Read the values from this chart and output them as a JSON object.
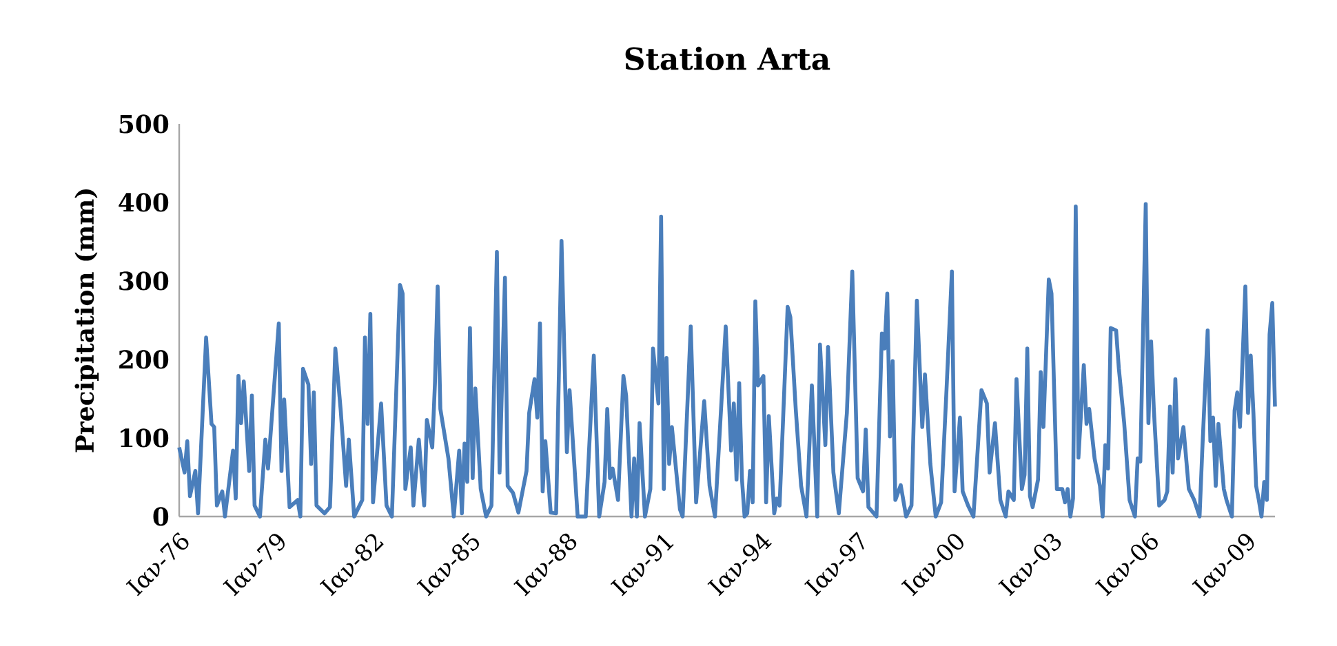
{
  "chart_data": {
    "type": "line",
    "title": "Station Arta",
    "ylabel": "Precipitation (mm)",
    "ylim": [
      0,
      500
    ],
    "yticks": [
      0,
      100,
      200,
      300,
      400,
      500
    ],
    "xlim": [
      "1976-01",
      "2009-12"
    ],
    "xticks": [
      {
        "value": "1976-01",
        "label": "Ιαν-76"
      },
      {
        "value": "1979-01",
        "label": "Ιαν-79"
      },
      {
        "value": "1982-01",
        "label": "Ιαν-82"
      },
      {
        "value": "1985-01",
        "label": "Ιαν-85"
      },
      {
        "value": "1988-01",
        "label": "Ιαν-88"
      },
      {
        "value": "1991-01",
        "label": "Ιαν-91"
      },
      {
        "value": "1994-01",
        "label": "Ιαν-94"
      },
      {
        "value": "1997-01",
        "label": "Ιαν-97"
      },
      {
        "value": "2000-01",
        "label": "Ιαν-00"
      },
      {
        "value": "2003-01",
        "label": "Ιαν-03"
      },
      {
        "value": "2006-01",
        "label": "Ιαν-06"
      },
      {
        "value": "2009-01",
        "label": "Ιαν-09"
      }
    ],
    "marker": "none",
    "line_style": "solid",
    "series": [
      {
        "color": "#4a7ebb",
        "x": [
          "1976-01",
          "1976-03",
          "1976-04",
          "1976-05",
          "1976-07",
          "1976-08",
          "1976-11",
          "1977-01",
          "1977-02",
          "1977-03",
          "1977-05",
          "1977-06",
          "1977-09",
          "1977-10",
          "1977-11",
          "1977-12",
          "1978-01",
          "1978-03",
          "1978-04",
          "1978-05",
          "1978-07",
          "1978-09",
          "1978-10",
          "1979-02",
          "1979-03",
          "1979-04",
          "1979-06",
          "1979-09",
          "1979-10",
          "1979-11",
          "1980-01",
          "1980-02",
          "1980-03",
          "1980-04",
          "1980-07",
          "1980-09",
          "1980-11",
          "1981-01",
          "1981-03",
          "1981-04",
          "1981-06",
          "1981-09",
          "1981-10",
          "1981-11",
          "1981-12",
          "1982-01",
          "1982-04",
          "1982-06",
          "1982-08",
          "1982-11",
          "1982-12",
          "1983-01",
          "1983-03",
          "1983-04",
          "1983-06",
          "1983-08",
          "1983-09",
          "1983-11",
          "1983-12",
          "1984-01",
          "1984-02",
          "1984-05",
          "1984-07",
          "1984-09",
          "1984-10",
          "1984-11",
          "1984-12",
          "1985-01",
          "1985-02",
          "1985-03",
          "1985-05",
          "1985-07",
          "1985-09",
          "1985-11",
          "1985-12",
          "1986-02",
          "1986-03",
          "1986-05",
          "1986-07",
          "1986-10",
          "1986-11",
          "1987-01",
          "1987-02",
          "1987-03",
          "1987-04",
          "1987-05",
          "1987-07",
          "1987-09",
          "1987-11",
          "1988-01",
          "1988-02",
          "1988-05",
          "1988-08",
          "1988-11",
          "1989-01",
          "1989-03",
          "1989-04",
          "1989-05",
          "1989-06",
          "1989-08",
          "1989-10",
          "1989-11",
          "1990-01",
          "1990-02",
          "1990-03",
          "1990-04",
          "1990-06",
          "1990-08",
          "1990-09",
          "1990-11",
          "1990-12",
          "1991-01",
          "1991-02",
          "1991-03",
          "1991-04",
          "1991-07",
          "1991-08",
          "1991-11",
          "1992-01",
          "1992-04",
          "1992-06",
          "1992-08",
          "1992-12",
          "1993-02",
          "1993-03",
          "1993-04",
          "1993-05",
          "1993-06",
          "1993-07",
          "1993-08",
          "1993-09",
          "1993-10",
          "1993-11",
          "1993-12",
          "1994-02",
          "1994-03",
          "1994-04",
          "1994-06",
          "1994-07",
          "1994-08",
          "1994-11",
          "1994-12",
          "1995-02",
          "1995-04",
          "1995-06",
          "1995-08",
          "1995-10",
          "1995-11",
          "1996-01",
          "1996-02",
          "1996-04",
          "1996-06",
          "1996-09",
          "1996-11",
          "1997-01",
          "1997-03",
          "1997-04",
          "1997-05",
          "1997-08",
          "1997-10",
          "1997-11",
          "1997-12",
          "1998-01",
          "1998-02",
          "1998-03",
          "1998-05",
          "1998-07",
          "1998-09",
          "1998-11",
          "1999-01",
          "1999-02",
          "1999-04",
          "1999-06",
          "1999-08",
          "1999-10",
          "1999-12",
          "2000-01",
          "2000-03",
          "2000-04",
          "2000-06",
          "2000-08",
          "2000-11",
          "2001-01",
          "2001-02",
          "2001-04",
          "2001-06",
          "2001-08",
          "2001-09",
          "2001-11",
          "2001-12",
          "2002-02",
          "2002-03",
          "2002-04",
          "2002-05",
          "2002-06",
          "2002-08",
          "2002-09",
          "2002-10",
          "2002-12",
          "2003-01",
          "2003-03",
          "2003-05",
          "2003-06",
          "2003-07",
          "2003-08",
          "2003-09",
          "2003-10",
          "2003-11",
          "2004-01",
          "2004-02",
          "2004-03",
          "2004-05",
          "2004-06",
          "2004-07",
          "2004-08",
          "2004-09",
          "2004-10",
          "2004-11",
          "2005-01",
          "2005-02",
          "2005-04",
          "2005-06",
          "2005-08",
          "2005-09",
          "2005-10",
          "2005-12",
          "2006-01",
          "2006-02",
          "2006-03",
          "2006-05",
          "2006-07",
          "2006-08",
          "2006-09",
          "2006-10",
          "2006-11",
          "2006-12",
          "2007-02",
          "2007-04",
          "2007-06",
          "2007-08",
          "2007-09",
          "2007-11",
          "2007-12",
          "2008-01",
          "2008-02",
          "2008-03",
          "2008-05",
          "2008-06",
          "2008-08",
          "2008-09",
          "2008-10",
          "2008-11",
          "2009-01",
          "2009-02",
          "2009-03",
          "2009-04",
          "2009-05",
          "2009-06",
          "2009-07",
          "2009-08",
          "2009-09",
          "2009-10",
          "2009-11",
          "2009-12"
        ],
        "values": [
          88,
          56,
          96,
          26,
          58,
          4,
          228,
          118,
          114,
          14,
          32,
          0,
          84,
          23,
          179,
          119,
          172,
          58,
          154,
          14,
          0,
          98,
          61,
          246,
          58,
          149,
          12,
          21,
          0,
          188,
          168,
          67,
          158,
          14,
          4,
          12,
          214,
          135,
          39,
          98,
          0,
          21,
          228,
          118,
          258,
          18,
          144,
          14,
          0,
          295,
          284,
          35,
          88,
          14,
          98,
          14,
          123,
          88,
          170,
          293,
          137,
          74,
          0,
          84,
          4,
          93,
          44,
          240,
          49,
          163,
          35,
          0,
          14,
          337,
          56,
          304,
          39,
          30,
          5,
          58,
          132,
          175,
          126,
          246,
          32,
          96,
          5,
          4,
          351,
          82,
          161,
          0,
          0,
          205,
          0,
          44,
          137,
          49,
          61,
          21,
          179,
          154,
          0,
          74,
          0,
          119,
          0,
          35,
          214,
          144,
          382,
          35,
          202,
          67,
          114,
          9,
          0,
          242,
          18,
          147,
          39,
          0,
          242,
          84,
          144,
          47,
          170,
          49,
          0,
          4,
          58,
          18,
          274,
          167,
          179,
          18,
          128,
          4,
          23,
          14,
          267,
          254,
          137,
          39,
          0,
          167,
          0,
          219,
          91,
          216,
          56,
          4,
          132,
          312,
          49,
          32,
          111,
          12,
          0,
          233,
          214,
          284,
          102,
          198,
          21,
          40,
          0,
          14,
          275,
          114,
          181,
          67,
          0,
          18,
          161,
          312,
          32,
          126,
          32,
          14,
          0,
          161,
          144,
          56,
          119,
          21,
          0,
          32,
          21,
          175,
          35,
          53,
          214,
          26,
          12,
          47,
          184,
          114,
          302,
          284,
          35,
          35,
          18,
          35,
          0,
          23,
          395,
          75,
          193,
          118,
          137,
          74,
          56,
          39,
          0,
          91,
          61,
          240,
          237,
          189,
          119,
          21,
          0,
          74,
          70,
          398,
          119,
          223,
          137,
          14,
          21,
          32,
          140,
          56,
          175,
          74,
          114,
          35,
          21,
          0,
          84,
          237,
          96,
          126,
          39,
          118,
          35,
          21,
          0,
          135,
          158,
          114,
          293,
          132,
          205,
          132,
          39,
          21,
          0,
          44,
          21,
          232,
          272,
          140
        ]
      }
    ]
  }
}
